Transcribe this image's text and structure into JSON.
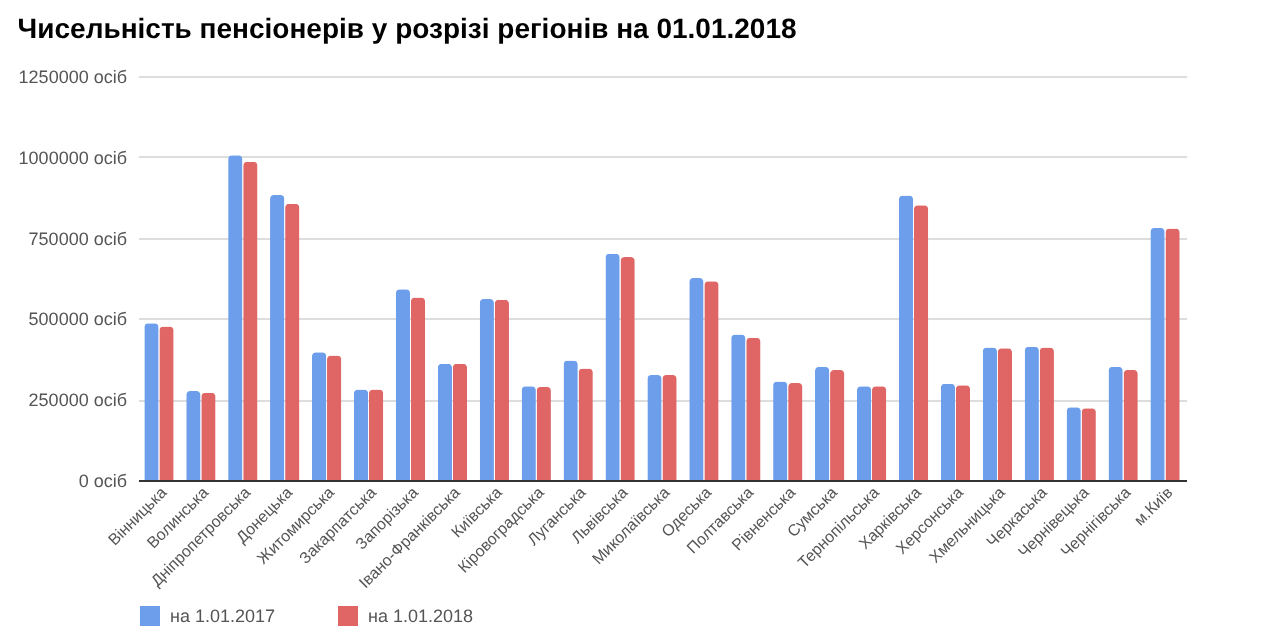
{
  "chart_data": {
    "type": "bar",
    "title": "Чисельність пенсіонерів у розрізі регіонів на 01.01.2018",
    "categories": [
      "Вінницька",
      "Волинська",
      "Дніпропетровська",
      "Донецька",
      "Житомирська",
      "Закарпатська",
      "Запорізька",
      "Івано-Франківська",
      "Київська",
      "Кіровоградська",
      "Луганська",
      "Львівська",
      "Миколаївська",
      "Одеська",
      "Полтавська",
      "Рівненська",
      "Сумська",
      "Тернопільська",
      "Харківська",
      "Херсонська",
      "Хмельницька",
      "Черкаська",
      "Чернівецька",
      "Чернігівська",
      "м.Київ"
    ],
    "series": [
      {
        "name": "на 1.01.2017",
        "color": "#6d9eeb",
        "values": [
          485000,
          275000,
          1005000,
          882000,
          395000,
          280000,
          590000,
          360000,
          560000,
          290000,
          370000,
          700000,
          325000,
          625000,
          450000,
          305000,
          350000,
          290000,
          880000,
          298000,
          410000,
          412000,
          225000,
          350000,
          780000
        ]
      },
      {
        "name": "на 1.01.2018",
        "color": "#e06666",
        "values": [
          475000,
          270000,
          985000,
          855000,
          385000,
          280000,
          565000,
          360000,
          558000,
          288000,
          345000,
          690000,
          325000,
          615000,
          440000,
          300000,
          340000,
          290000,
          850000,
          293000,
          408000,
          410000,
          222000,
          340000,
          778000
        ]
      }
    ],
    "ylim": [
      0,
      1250000
    ],
    "yticks": [
      {
        "value": 0,
        "label": "0 осіб"
      },
      {
        "value": 250000,
        "label": "250000 осіб"
      },
      {
        "value": 500000,
        "label": "500000 осіб"
      },
      {
        "value": 750000,
        "label": "750000 осіб"
      },
      {
        "value": 1000000,
        "label": "1000000 осіб"
      },
      {
        "value": 1250000,
        "label": "1250000 осіб"
      }
    ],
    "grid": "y",
    "legend": "bottom"
  }
}
